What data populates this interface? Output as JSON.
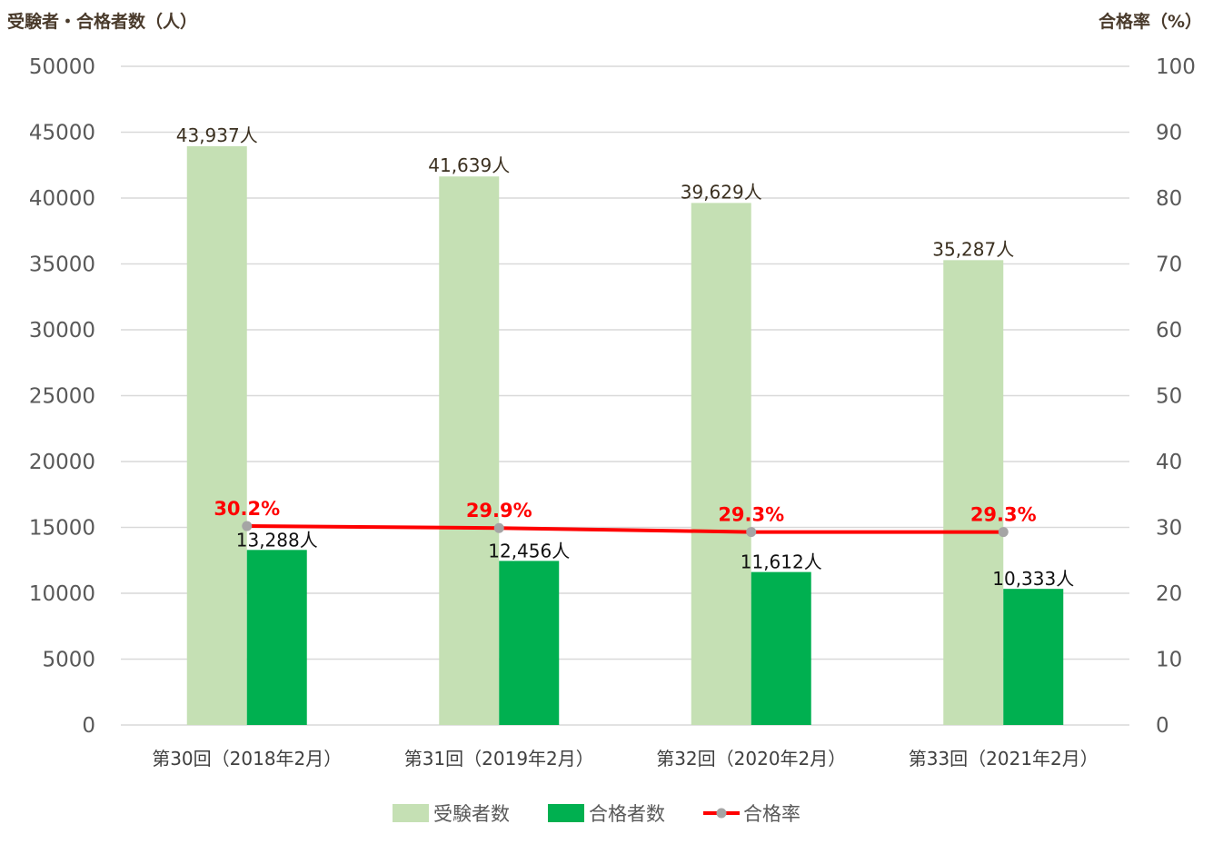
{
  "chart_data": {
    "type": "bar",
    "categories": [
      "第30回（2018年2月）",
      "第31回（2019年2月）",
      "第32回（2020年2月）",
      "第33回（2021年2月）"
    ],
    "series": [
      {
        "name": "受験者数",
        "kind": "bar",
        "axis": "left",
        "color": "#c5e0b4",
        "values": [
          43937,
          41639,
          39629,
          35287
        ],
        "labels": [
          "43,937人",
          "41,639人",
          "39,629人",
          "35,287人"
        ]
      },
      {
        "name": "合格者数",
        "kind": "bar",
        "axis": "left",
        "color": "#00b050",
        "values": [
          13288,
          12456,
          11612,
          10333
        ],
        "labels": [
          "13,288人",
          "12,456人",
          "11,612人",
          "10,333人"
        ]
      },
      {
        "name": "合格率",
        "kind": "line",
        "axis": "right",
        "color": "#ff0000",
        "marker_color": "#a5a5a5",
        "values": [
          30.2,
          29.9,
          29.3,
          29.3
        ],
        "labels": [
          "30.2%",
          "29.9%",
          "29.3%",
          "29.3%"
        ]
      }
    ],
    "y_left": {
      "label": "受験者・合格者数（人）",
      "min": 0,
      "max": 50000,
      "ticks": [
        "0",
        "5000",
        "10000",
        "15000",
        "20000",
        "25000",
        "30000",
        "35000",
        "40000",
        "45000",
        "50000"
      ]
    },
    "y_right": {
      "label": "合格率（%）",
      "min": 0,
      "max": 100,
      "ticks": [
        "0",
        "10",
        "20",
        "30",
        "40",
        "50",
        "60",
        "70",
        "80",
        "90",
        "100"
      ]
    },
    "grid": true,
    "legend": "bottom-center"
  }
}
